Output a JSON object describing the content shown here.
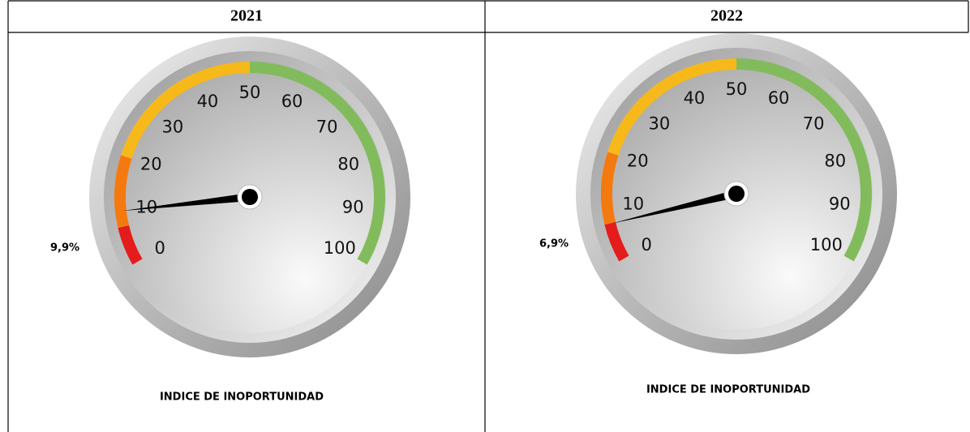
{
  "table": {
    "headers": [
      "2021",
      "2022"
    ]
  },
  "chart_data": [
    {
      "type": "gauge",
      "title": "INDICE DE INOPORTUNIDAD",
      "values": [
        9.9
      ],
      "value_labels": [
        "9,9%"
      ],
      "ylim": [
        0,
        100
      ],
      "yticks": [
        0,
        10,
        20,
        30,
        40,
        50,
        60,
        70,
        80,
        90,
        100
      ],
      "bands": [
        {
          "from": 0,
          "to": 7,
          "color": "#e41c1c"
        },
        {
          "from": 7,
          "to": 20,
          "color": "#f47a10"
        },
        {
          "from": 20,
          "to": 50,
          "color": "#f7b81a"
        },
        {
          "from": 50,
          "to": 100,
          "color": "#82bb5c"
        }
      ]
    },
    {
      "type": "gauge",
      "title": "INDICE DE INOPORTUNIDAD",
      "values": [
        6.9
      ],
      "value_labels": [
        "6,9%"
      ],
      "ylim": [
        0,
        100
      ],
      "yticks": [
        0,
        10,
        20,
        30,
        40,
        50,
        60,
        70,
        80,
        90,
        100
      ],
      "bands": [
        {
          "from": 0,
          "to": 7,
          "color": "#e41c1c"
        },
        {
          "from": 7,
          "to": 20,
          "color": "#f47a10"
        },
        {
          "from": 20,
          "to": 50,
          "color": "#f7b81a"
        },
        {
          "from": 50,
          "to": 100,
          "color": "#82bb5c"
        }
      ]
    }
  ]
}
